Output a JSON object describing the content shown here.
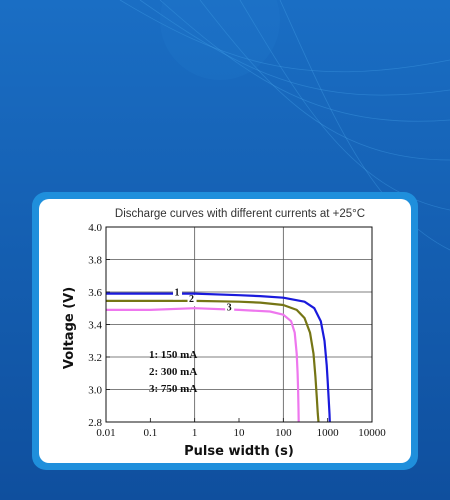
{
  "colors": {
    "background": "#1460b4",
    "card_frame": "#1f8fdc",
    "card": "#ffffff"
  },
  "chart_data": {
    "type": "line",
    "title": "Discharge curves with different currents at +25°C",
    "xlabel": "Pulse width (s)",
    "ylabel": "Voltage (V)",
    "xscale": "log",
    "xlim": [
      0.01,
      10000
    ],
    "ylim": [
      2.8,
      4.0
    ],
    "xticks": [
      0.01,
      0.1,
      1,
      10,
      100,
      1000,
      10000
    ],
    "xtick_labels": [
      "0.01",
      "0.1",
      "1",
      "10",
      "100",
      "1000",
      "10000"
    ],
    "yticks": [
      2.8,
      3.0,
      3.2,
      3.4,
      3.6,
      3.8,
      4.0
    ],
    "ytick_labels": [
      "2.8",
      "3.0",
      "3.2",
      "3.4",
      "3.6",
      "3.8",
      "4.0"
    ],
    "grid": true,
    "legend": {
      "placement": "lower-left",
      "entries": [
        "1: 150 mA",
        "2: 300 mA",
        "3: 750 mA"
      ]
    },
    "series": [
      {
        "label": "1",
        "color": "#1a1adc",
        "x": [
          0.01,
          0.1,
          1,
          10,
          30,
          100,
          300,
          500,
          700,
          850,
          950,
          1000,
          1050,
          1100,
          1120
        ],
        "y": [
          3.59,
          3.59,
          3.59,
          3.58,
          3.575,
          3.565,
          3.54,
          3.5,
          3.42,
          3.3,
          3.15,
          3.05,
          2.95,
          2.85,
          2.8
        ]
      },
      {
        "label": "2",
        "color": "#757515",
        "x": [
          0.01,
          0.1,
          1,
          10,
          30,
          100,
          200,
          300,
          400,
          480,
          530,
          570,
          600,
          620
        ],
        "y": [
          3.545,
          3.545,
          3.545,
          3.54,
          3.535,
          3.52,
          3.49,
          3.44,
          3.35,
          3.22,
          3.08,
          2.95,
          2.85,
          2.8
        ]
      },
      {
        "label": "3",
        "color": "#ee77ee",
        "x": [
          0.01,
          0.1,
          1,
          10,
          50,
          100,
          150,
          180,
          200,
          210,
          215,
          220,
          222
        ],
        "y": [
          3.49,
          3.49,
          3.5,
          3.49,
          3.48,
          3.46,
          3.42,
          3.35,
          3.22,
          3.1,
          3.0,
          2.88,
          2.8
        ]
      }
    ],
    "series_label_positions": [
      {
        "label": "1",
        "x": 0.4,
        "y": 3.59
      },
      {
        "label": "2",
        "x": 0.85,
        "y": 3.55
      },
      {
        "label": "3",
        "x": 6,
        "y": 3.5
      }
    ]
  }
}
